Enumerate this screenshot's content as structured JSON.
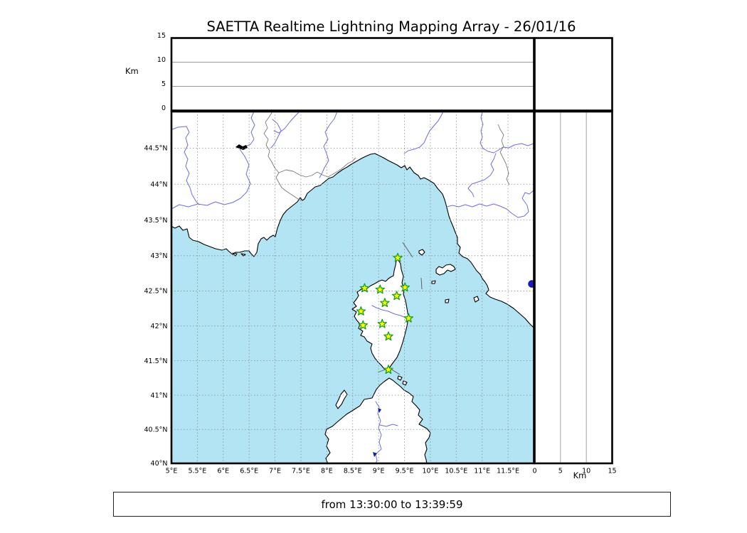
{
  "title": "SAETTA Realtime Lightning Mapping Array - 26/01/16",
  "time_window": {
    "text": "from 13:30:00 to 13:39:59"
  },
  "altitude_axis": {
    "label": "Km",
    "tick_values": [
      0,
      5,
      10,
      15
    ],
    "max_km": 15,
    "gridlines_km": [
      5,
      10
    ]
  },
  "map": {
    "lon_ticks": [
      {
        "label": "5°E",
        "lon": 5
      },
      {
        "label": "5.5°E",
        "lon": 5.5
      },
      {
        "label": "6°E",
        "lon": 6
      },
      {
        "label": "6.5°E",
        "lon": 6.5
      },
      {
        "label": "7°E",
        "lon": 7
      },
      {
        "label": "7.5°E",
        "lon": 7.5
      },
      {
        "label": "8°E",
        "lon": 8
      },
      {
        "label": "8.5°E",
        "lon": 8.5
      },
      {
        "label": "9°E",
        "lon": 9
      },
      {
        "label": "9.5°E",
        "lon": 9.5
      },
      {
        "label": "10°E",
        "lon": 10
      },
      {
        "label": "10.5°E",
        "lon": 10.5
      },
      {
        "label": "11°E",
        "lon": 11
      },
      {
        "label": "11.5°E",
        "lon": 11.5
      }
    ],
    "lat_ticks": [
      {
        "label": "44.5°N",
        "lat": 44.5
      },
      {
        "label": "44°N",
        "lat": 44
      },
      {
        "label": "43.5°N",
        "lat": 43.5
      },
      {
        "label": "43°N",
        "lat": 43
      },
      {
        "label": "42.5°N",
        "lat": 42.5
      },
      {
        "label": "42°N",
        "lat": 42
      },
      {
        "label": "41.5°N",
        "lat": 41.5
      },
      {
        "label": "41°N",
        "lat": 41
      },
      {
        "label": "40.5°N",
        "lat": 40.5
      },
      {
        "label": "40°N",
        "lat": 40
      }
    ],
    "lon_range": [
      5,
      12
    ],
    "lat_range": [
      40,
      45
    ],
    "grid_step_deg": 0.5
  },
  "stations": [
    {
      "lon": 9.37,
      "lat": 42.97
    },
    {
      "lon": 8.73,
      "lat": 42.54
    },
    {
      "lon": 9.03,
      "lat": 42.52
    },
    {
      "lon": 9.51,
      "lat": 42.55
    },
    {
      "lon": 9.35,
      "lat": 42.43
    },
    {
      "lon": 9.12,
      "lat": 42.33
    },
    {
      "lon": 8.66,
      "lat": 42.21
    },
    {
      "lon": 9.58,
      "lat": 42.11
    },
    {
      "lon": 8.7,
      "lat": 42.01
    },
    {
      "lon": 9.07,
      "lat": 42.03
    },
    {
      "lon": 9.19,
      "lat": 41.85
    },
    {
      "lon": 9.19,
      "lat": 41.37
    }
  ],
  "colors": {
    "sea": "#B2E4F4",
    "land": "#FFFFFF",
    "coast": "#000000",
    "river": "#6E6EE6",
    "border": "#7A7A7A",
    "grid": "#8C8C8C",
    "star_fill": "#FFFF00",
    "star_stroke": "#18A018",
    "lake": "#1A1ACC"
  }
}
